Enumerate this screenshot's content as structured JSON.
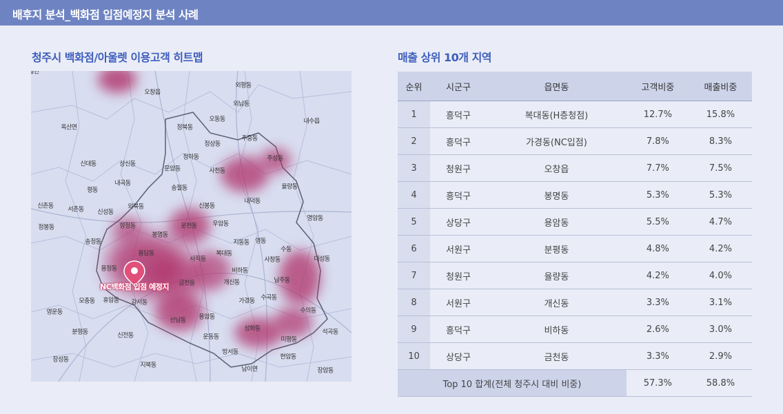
{
  "header": {
    "title": "배후지 분석_백화점 입점예정지 분석 사례"
  },
  "map": {
    "title": "청주시 백화점/아울렛 이용고객 히트맵",
    "marker_label": "NC백화점 입점 예정지",
    "places": [
      "오창읍",
      "외평동",
      "외남동",
      "오동동",
      "정북동",
      "내수읍",
      "옥산면",
      "정상동",
      "주중동",
      "정하동",
      "주성동",
      "신대동",
      "상신동",
      "문암동",
      "사천동",
      "내곡동",
      "율량동",
      "송절동",
      "평동",
      "내덕동",
      "신촌동",
      "서촌동",
      "신성동",
      "외북동",
      "신봉동",
      "정봉동",
      "향정동",
      "봉명동",
      "운천동",
      "우암동",
      "명암동",
      "송정동",
      "지동동",
      "영동",
      "수동",
      "용담동",
      "복대동",
      "사직동",
      "사창동",
      "대성동",
      "용정동",
      "비하동",
      "남주동",
      "금천동",
      "개신동",
      "모충동",
      "휴암동",
      "강서동",
      "가경동",
      "수곡동",
      "영운동",
      "수의동",
      "용암동",
      "산남동",
      "성화동",
      "분평동",
      "신전동",
      "석곡동",
      "운동동",
      "미평동",
      "방서동",
      "장성동",
      "현암동",
      "지북동",
      "남이면",
      "장암동",
      "남일면"
    ]
  },
  "table": {
    "title": "매출 상위 10개 지역",
    "headers": [
      "순위",
      "시군구",
      "읍면동",
      "고객비중",
      "매출비중"
    ],
    "rows": [
      [
        "1",
        "흥덕구",
        "복대동(H층청점)",
        "12.7%",
        "15.8%"
      ],
      [
        "2",
        "흥덕구",
        "가경동(NC입점)",
        "7.8%",
        "8.3%"
      ],
      [
        "3",
        "청원구",
        "오창읍",
        "7.7%",
        "7.5%"
      ],
      [
        "4",
        "흥덕구",
        "봉명동",
        "5.3%",
        "5.3%"
      ],
      [
        "5",
        "상당구",
        "용암동",
        "5.5%",
        "4.7%"
      ],
      [
        "6",
        "서원구",
        "분평동",
        "4.8%",
        "4.2%"
      ],
      [
        "7",
        "청원구",
        "율량동",
        "4.2%",
        "4.0%"
      ],
      [
        "8",
        "서원구",
        "개신동",
        "3.3%",
        "3.1%"
      ],
      [
        "9",
        "흥덕구",
        "비하동",
        "2.6%",
        "3.0%"
      ],
      [
        "10",
        "상당구",
        "금천동",
        "3.3%",
        "2.9%"
      ]
    ],
    "total": {
      "label": "Top 10 합계(전체 청주시 대비 비중)",
      "customer": "57.3%",
      "sales": "58.8%"
    }
  },
  "colors": {
    "header_bg": "#6e83c2",
    "accent": "#3d5dbc",
    "heat": "#b0306a",
    "marker": "#e0507a"
  }
}
